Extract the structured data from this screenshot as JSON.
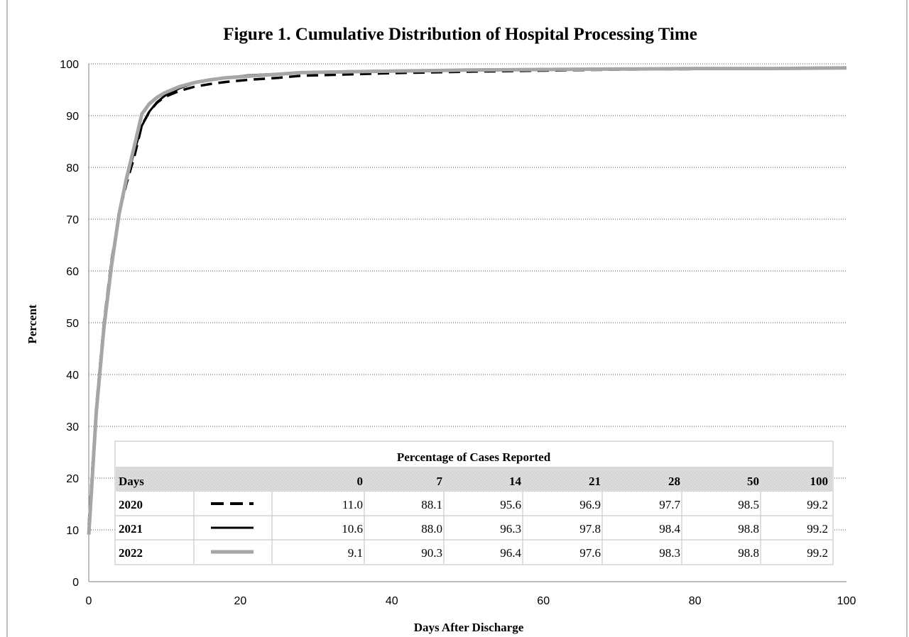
{
  "chart_data": {
    "type": "line",
    "title": "Figure 1. Cumulative Distribution of Hospital Processing Time",
    "xlabel": "Days After Discharge",
    "ylabel": "Percent",
    "xlim": [
      0,
      100
    ],
    "ylim": [
      0,
      100
    ],
    "x_ticks": [
      "0",
      "20",
      "40",
      "60",
      "80",
      "100"
    ],
    "y_ticks": [
      "0",
      "10",
      "20",
      "30",
      "40",
      "50",
      "60",
      "70",
      "80",
      "90",
      "100"
    ],
    "grid": "horizontal dotted",
    "series": [
      {
        "name": "2020",
        "color": "#000000",
        "style": "dashed",
        "x": [
          0,
          1,
          2,
          3,
          4,
          5,
          6,
          7,
          8,
          9,
          10,
          12,
          14,
          16,
          18,
          21,
          25,
          28,
          35,
          40,
          50,
          60,
          70,
          80,
          90,
          100
        ],
        "y": [
          11.0,
          34,
          50,
          62,
          71,
          77,
          82,
          88.1,
          90.8,
          92.5,
          93.6,
          94.8,
          95.6,
          96.1,
          96.5,
          96.9,
          97.3,
          97.7,
          98.0,
          98.2,
          98.5,
          98.7,
          98.9,
          99.0,
          99.1,
          99.2
        ]
      },
      {
        "name": "2021",
        "color": "#000000",
        "style": "solid",
        "x": [
          0,
          1,
          2,
          3,
          4,
          5,
          6,
          7,
          8,
          9,
          10,
          12,
          14,
          16,
          18,
          21,
          25,
          28,
          35,
          40,
          50,
          60,
          70,
          80,
          90,
          100
        ],
        "y": [
          10.6,
          34,
          50,
          62,
          71,
          77.5,
          83,
          88.0,
          90.8,
          92.6,
          93.8,
          95.3,
          96.3,
          96.9,
          97.3,
          97.8,
          98.1,
          98.4,
          98.6,
          98.7,
          98.8,
          98.9,
          99.0,
          99.1,
          99.1,
          99.2
        ]
      },
      {
        "name": "2022",
        "color": "#a6a6a6",
        "style": "solid",
        "x": [
          0,
          1,
          2,
          3,
          4,
          5,
          6,
          7,
          8,
          9,
          10,
          12,
          14,
          16,
          18,
          21,
          25,
          28,
          35,
          40,
          50,
          60,
          70,
          80,
          90,
          100
        ],
        "y": [
          9.1,
          33,
          49,
          61,
          71,
          78,
          84,
          90.3,
          92.3,
          93.5,
          94.4,
          95.6,
          96.4,
          96.9,
          97.3,
          97.6,
          98.0,
          98.3,
          98.5,
          98.6,
          98.8,
          98.9,
          99.0,
          99.1,
          99.1,
          99.2
        ]
      }
    ],
    "table": {
      "title": "Percentage of Cases Reported",
      "header_label": "Days",
      "columns": [
        "0",
        "7",
        "14",
        "21",
        "28",
        "50",
        "100"
      ],
      "rows": [
        {
          "label": "2020",
          "values": [
            "11.0",
            "88.1",
            "95.6",
            "96.9",
            "97.7",
            "98.5",
            "99.2"
          ]
        },
        {
          "label": "2021",
          "values": [
            "10.6",
            "88.0",
            "96.3",
            "97.8",
            "98.4",
            "98.8",
            "99.2"
          ]
        },
        {
          "label": "2022",
          "values": [
            "9.1",
            "90.3",
            "96.4",
            "97.6",
            "98.3",
            "98.8",
            "99.2"
          ]
        }
      ]
    }
  }
}
